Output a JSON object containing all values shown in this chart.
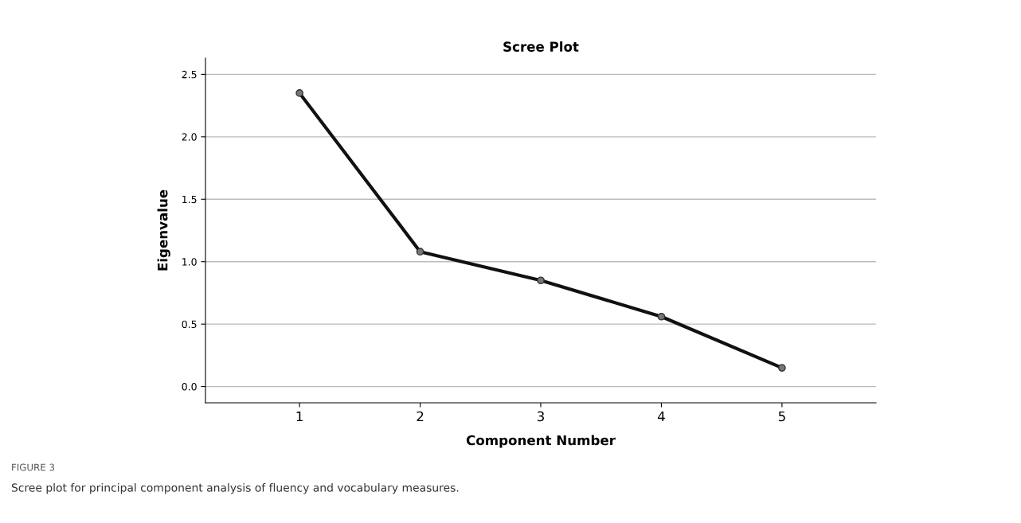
{
  "chart_data": {
    "type": "line",
    "title": "Scree Plot",
    "xlabel": "Component Number",
    "ylabel": "Eigenvalue",
    "x": [
      1,
      2,
      3,
      4,
      5
    ],
    "series": [
      {
        "color": "#111111",
        "values": [
          2.35,
          1.08,
          0.85,
          0.56,
          0.15
        ]
      }
    ],
    "xlim": [
      0.22,
      5.78
    ],
    "xticks": [
      1,
      2,
      3,
      4,
      5
    ],
    "ylim": [
      -0.13,
      2.63
    ],
    "yticks": [
      {
        "value": 0,
        "label": "0.0"
      },
      {
        "value": 0.5,
        "label": "0.5"
      },
      {
        "value": 1,
        "label": "1.0"
      },
      {
        "value": 1.5,
        "label": "1.5"
      },
      {
        "value": 2,
        "label": "2.0"
      },
      {
        "value": 2.5,
        "label": "2.5"
      }
    ],
    "grid": "y",
    "marker": "circle",
    "line_style": "solid",
    "annotations": [
      "FIGURE 3",
      "Scree plot for principal component analysis of fluency and vocabulary measures."
    ]
  }
}
